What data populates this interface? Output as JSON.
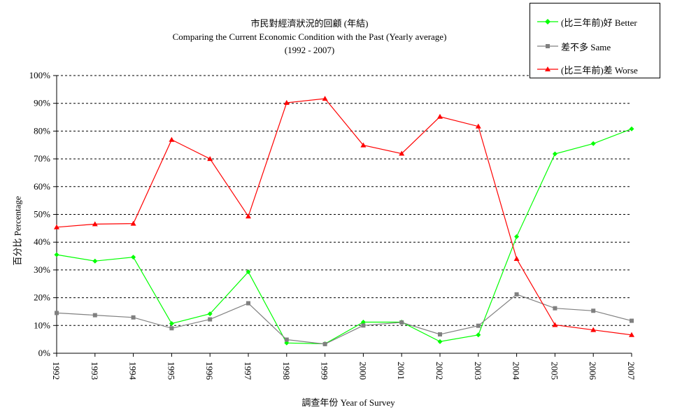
{
  "title": "市民對經濟狀況的回顧 (年結)",
  "subtitle": "Comparing the Current Economic Condition with the Past  (Yearly average)",
  "period": "(1992 - 2007)",
  "chart_data": {
    "type": "line",
    "title": "市民對經濟狀況的回顧 (年結)",
    "xlabel": "調查年份 Year of Survey",
    "ylabel": "百分比 Percentage",
    "ylim": [
      0,
      100
    ],
    "yticks": [
      "0%",
      "10%",
      "20%",
      "30%",
      "40%",
      "50%",
      "60%",
      "70%",
      "80%",
      "90%",
      "100%"
    ],
    "grid": true,
    "legend_position": "top-right",
    "x": [
      "1992",
      "1993",
      "1994",
      "1995",
      "1996",
      "1997",
      "1998",
      "1999",
      "2000",
      "2001",
      "2002",
      "2003",
      "2004",
      "2005",
      "2006",
      "2007"
    ],
    "series": [
      {
        "name": "(比三年前)好 Better",
        "color": "#00ff00",
        "marker": "diamond",
        "values": [
          35.5,
          33.2,
          34.6,
          10.7,
          14.2,
          29.3,
          3.7,
          3.4,
          11.2,
          11.2,
          4.2,
          6.6,
          42.0,
          71.8,
          75.5,
          80.8
        ]
      },
      {
        "name": "差不多 Same",
        "color": "#808080",
        "marker": "square",
        "values": [
          14.5,
          13.7,
          12.9,
          9.0,
          12.2,
          18.0,
          4.9,
          3.3,
          10.0,
          11.1,
          6.8,
          9.9,
          21.2,
          16.2,
          15.3,
          11.7
        ]
      },
      {
        "name": "(比三年前)差 Worse",
        "color": "#ff0000",
        "marker": "triangle",
        "values": [
          45.4,
          46.5,
          46.7,
          76.9,
          70.0,
          49.3,
          90.2,
          91.7,
          74.9,
          71.9,
          85.2,
          81.7,
          34.0,
          10.2,
          8.4,
          6.6
        ]
      }
    ]
  }
}
